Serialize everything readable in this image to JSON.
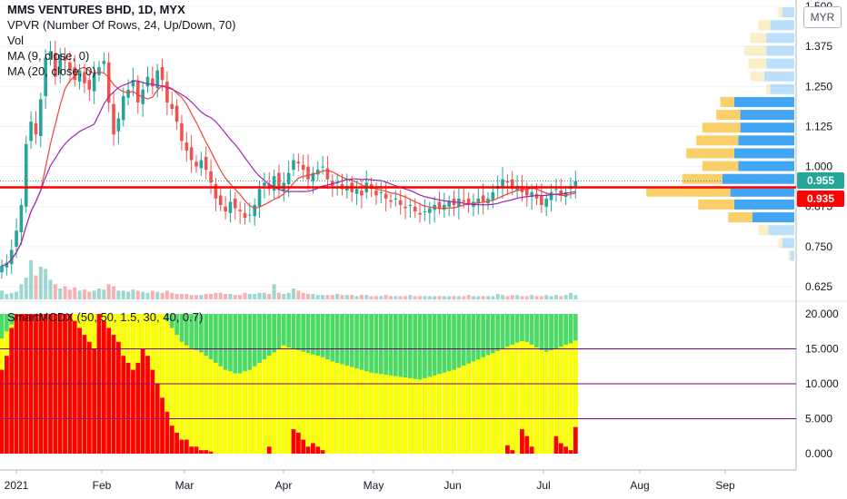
{
  "header": {
    "title": "MMS VENTURES BHD, 1D, MYX",
    "indicators": [
      "VPVR (Number Of Rows, 24, Up/Down, 70)",
      "Vol",
      "MA (9, close, 0)",
      "MA (20, close, 0)"
    ],
    "currency": "MYR",
    "lower_indicator": "SmartMCDX (50, 50, 1.5, 30, 40, 0.7)"
  },
  "price_badges": {
    "last": "0.955",
    "level": "0.935"
  },
  "colors": {
    "up": "#26a69a",
    "down": "#ef5350",
    "ma9": "#f44336",
    "ma20": "#9c27b0",
    "level_line": "#ff0000",
    "vp_up": "#2196f3",
    "vp_down": "#f9c74f",
    "mcdx_green": "#4cd964",
    "mcdx_yellow": "#ffff00",
    "mcdx_red": "#ff0000",
    "hline": "#800080"
  },
  "chart_data": [
    {
      "type": "candlestick",
      "title": "MMS VENTURES BHD, 1D, MYX",
      "price_axis_ticks": [
        "1.500",
        "1.375",
        "1.250",
        "1.125",
        "1.000",
        "0.875",
        "0.750",
        "0.625"
      ],
      "ylim": [
        0.59,
        1.5
      ],
      "time_axis_labels": [
        "2021",
        "Feb",
        "Mar",
        "Apr",
        "May",
        "Jun",
        "Jul",
        "Aug",
        "Sep"
      ],
      "level_line": 0.935,
      "last_close": 0.955,
      "close": [
        0.69,
        0.7,
        0.74,
        0.8,
        0.88,
        1.07,
        1.14,
        1.1,
        1.21,
        1.34,
        1.36,
        1.28,
        1.35,
        1.33,
        1.3,
        1.27,
        1.3,
        1.26,
        1.24,
        1.29,
        1.31,
        1.33,
        1.2,
        1.1,
        1.15,
        1.22,
        1.24,
        1.27,
        1.2,
        1.24,
        1.28,
        1.25,
        1.3,
        1.27,
        1.2,
        1.18,
        1.14,
        1.08,
        1.05,
        1.02,
        1.0,
        1.02,
        0.99,
        0.95,
        0.9,
        0.88,
        0.86,
        0.89,
        0.87,
        0.86,
        0.84,
        0.85,
        0.88,
        0.93,
        0.95,
        0.93,
        0.97,
        0.93,
        0.95,
        0.98,
        1.02,
        1.01,
        0.99,
        0.96,
        0.98,
        0.99,
        1.0,
        0.96,
        0.94,
        0.95,
        0.93,
        0.94,
        0.92,
        0.93,
        0.91,
        0.95,
        0.93,
        0.91,
        0.92,
        0.9,
        0.89,
        0.9,
        0.88,
        0.87,
        0.88,
        0.86,
        0.85,
        0.86,
        0.87,
        0.88,
        0.87,
        0.88,
        0.89,
        0.88,
        0.9,
        0.89,
        0.88,
        0.89,
        0.9,
        0.89,
        0.9,
        0.92,
        0.94,
        0.96,
        0.95,
        0.93,
        0.94,
        0.92,
        0.91,
        0.92,
        0.9,
        0.88,
        0.9,
        0.92,
        0.93,
        0.91,
        0.92,
        0.94,
        0.955
      ]
    },
    {
      "type": "bar",
      "title": "SmartMCDX (50, 50, 1.5, 30, 40, 0.7)",
      "ylim": [
        0,
        20
      ],
      "axis_ticks": [
        "20.000",
        "15.000",
        "10.000",
        "5.000",
        "0.000"
      ],
      "hlines": [
        5,
        10,
        15
      ],
      "series": [
        {
          "name": "green",
          "values": [
            20,
            20,
            20,
            20,
            20,
            20,
            20,
            20,
            20,
            20,
            20,
            20,
            20,
            20,
            20,
            20,
            20,
            20,
            20,
            20,
            20,
            20,
            20,
            20,
            20,
            20,
            20,
            20,
            20,
            20,
            20,
            20,
            20,
            20,
            20,
            20,
            20,
            20,
            20,
            20,
            20,
            20,
            20,
            20,
            20,
            20,
            20,
            20,
            20,
            20,
            20,
            20,
            20,
            20,
            20,
            20,
            20,
            20,
            20,
            20,
            20,
            20,
            20,
            20,
            20,
            20,
            20,
            20,
            20,
            20,
            20,
            20,
            20,
            20,
            20,
            20,
            20,
            20,
            20,
            20,
            20,
            20,
            20,
            20,
            20,
            20,
            20,
            20,
            20,
            20,
            20,
            20,
            20,
            20,
            20,
            20,
            20,
            20,
            20,
            20,
            20,
            20,
            20,
            20,
            20,
            20,
            20,
            20,
            20,
            20,
            20,
            20,
            20,
            20,
            20,
            20,
            20,
            20,
            20
          ]
        },
        {
          "name": "yellow",
          "values": [
            16.5,
            17.5,
            18.5,
            19.5,
            20,
            20,
            20,
            20,
            20,
            20,
            20,
            20,
            20,
            20,
            20,
            20,
            20,
            20,
            20,
            20,
            20,
            20,
            20,
            20,
            20,
            20,
            20,
            20,
            20,
            20,
            20,
            20,
            20,
            20,
            19,
            18,
            17,
            16,
            15.5,
            15,
            14.8,
            14.5,
            14,
            13.5,
            13,
            12.5,
            12,
            11.8,
            11.5,
            11.5,
            11.8,
            12,
            12.5,
            13,
            13.5,
            14,
            14.5,
            15,
            15.5,
            15.2,
            15,
            14.8,
            14.6,
            14.4,
            14.2,
            14,
            13.8,
            13.5,
            13.2,
            13,
            12.8,
            12.6,
            12.4,
            12.2,
            12,
            11.8,
            11.6,
            11.5,
            11.4,
            11.3,
            11.2,
            11.1,
            11,
            10.9,
            10.8,
            10.7,
            10.6,
            10.8,
            11,
            11.2,
            11.4,
            11.6,
            11.8,
            12,
            12.3,
            12.6,
            12.9,
            13.2,
            13.5,
            13.8,
            14.1,
            14.4,
            14.7,
            15,
            15.3,
            15.6,
            15.9,
            16.1,
            16,
            15.6,
            15.2,
            14.8,
            14.6,
            14.8,
            15,
            15.3,
            15.6,
            15.8,
            16.2
          ]
        },
        {
          "name": "red",
          "values": [
            12,
            14,
            18,
            20,
            20,
            20,
            20,
            20,
            20,
            20,
            20,
            20,
            20,
            20,
            20,
            19,
            18,
            17,
            16,
            15,
            20,
            19,
            18,
            17,
            16,
            14,
            13,
            12,
            13,
            15,
            14,
            12,
            10,
            8,
            6,
            4,
            3,
            2,
            2,
            1,
            1,
            0.5,
            0.5,
            0.3,
            0,
            0,
            0,
            0,
            0,
            0,
            0,
            0,
            0,
            0,
            0,
            1,
            0,
            0,
            0,
            0,
            3.5,
            3,
            2,
            1,
            1.5,
            1,
            0.5,
            0,
            0,
            0,
            0,
            0,
            0,
            0,
            0,
            0,
            0,
            0,
            0,
            0,
            0,
            0,
            0,
            0,
            0,
            0,
            0,
            0,
            0,
            0,
            0,
            0,
            0,
            0,
            0,
            0,
            0,
            0,
            0,
            0,
            0,
            0,
            0,
            0,
            1.2,
            0.5,
            0,
            3.5,
            2.5,
            1,
            0,
            0,
            0,
            0,
            2.5,
            1.5,
            1,
            0.5,
            3.8
          ]
        }
      ]
    },
    {
      "type": "bar",
      "title": "Vol",
      "values": [
        8,
        5,
        6,
        7,
        14,
        20,
        36,
        22,
        30,
        28,
        18,
        14,
        10,
        12,
        9,
        11,
        8,
        9,
        7,
        8,
        10,
        9,
        14,
        12,
        8,
        8,
        7,
        9,
        8,
        7,
        6,
        8,
        7,
        6,
        8,
        6,
        5,
        5,
        5,
        4,
        4,
        4,
        5,
        5,
        6,
        6,
        5,
        5,
        4,
        4,
        6,
        5,
        5,
        6,
        6,
        5,
        14,
        6,
        5,
        6,
        10,
        8,
        6,
        5,
        5,
        4,
        4,
        4,
        4,
        5,
        4,
        4,
        4,
        3,
        4,
        4,
        3,
        3,
        3,
        4,
        3,
        3,
        3,
        3,
        4,
        3,
        3,
        3,
        3,
        3,
        3,
        3,
        3,
        3,
        3,
        3,
        4,
        3,
        3,
        3,
        3,
        3,
        5,
        4,
        3,
        4,
        4,
        3,
        3,
        4,
        3,
        3,
        4,
        3,
        4,
        3,
        4,
        6,
        4
      ]
    },
    {
      "type": "bar",
      "title": "VPVR (Number Of Rows, 24, Up/Down, 70)",
      "price_levels": [
        1.48,
        1.44,
        1.4,
        1.36,
        1.32,
        1.28,
        1.24,
        1.2,
        1.16,
        1.12,
        1.08,
        1.04,
        1.0,
        0.96,
        0.92,
        0.88,
        0.84,
        0.8,
        0.76,
        0.72
      ],
      "up_volume": [
        6,
        12,
        14,
        14,
        14,
        15,
        12,
        30,
        27,
        27,
        28,
        30,
        28,
        36,
        32,
        30,
        21,
        13,
        6,
        2
      ],
      "down_volume": [
        2,
        6,
        8,
        11,
        9,
        7,
        2,
        7,
        12,
        19,
        21,
        24,
        18,
        20,
        42,
        18,
        12,
        5,
        2,
        1
      ]
    }
  ]
}
